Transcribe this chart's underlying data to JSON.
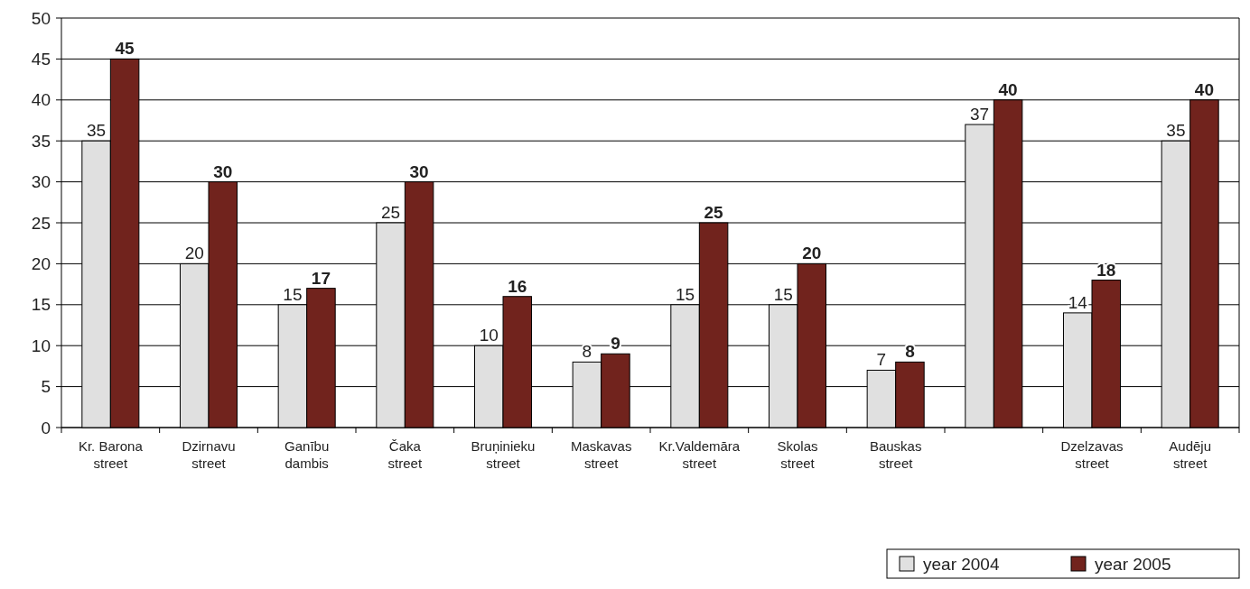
{
  "chart_data": {
    "type": "bar",
    "categories": [
      "Kr. Barona street",
      "Dzirnavu street",
      "Ganību dambis",
      "Čaka street",
      "Bruņinieku street",
      "Maskavas street",
      "Kr.Valdemāra street",
      "Skolas street",
      "Bauskas street",
      null,
      "Dzelzavas street",
      "Audēju street"
    ],
    "series": [
      {
        "name": "year 2004",
        "color": "#e0e0e0",
        "values": [
          35,
          20,
          15,
          25,
          10,
          8,
          15,
          15,
          7,
          37,
          14,
          35
        ]
      },
      {
        "name": "year 2005",
        "color": "#71231d",
        "values": [
          45,
          30,
          17,
          30,
          16,
          9,
          25,
          20,
          8,
          40,
          18,
          40
        ]
      }
    ],
    "ylim": [
      0,
      50
    ],
    "yticks": [
      0,
      5,
      10,
      15,
      20,
      25,
      30,
      35,
      40,
      45,
      50
    ],
    "grid": "y",
    "legend": "bottom right",
    "data_labels": true
  }
}
